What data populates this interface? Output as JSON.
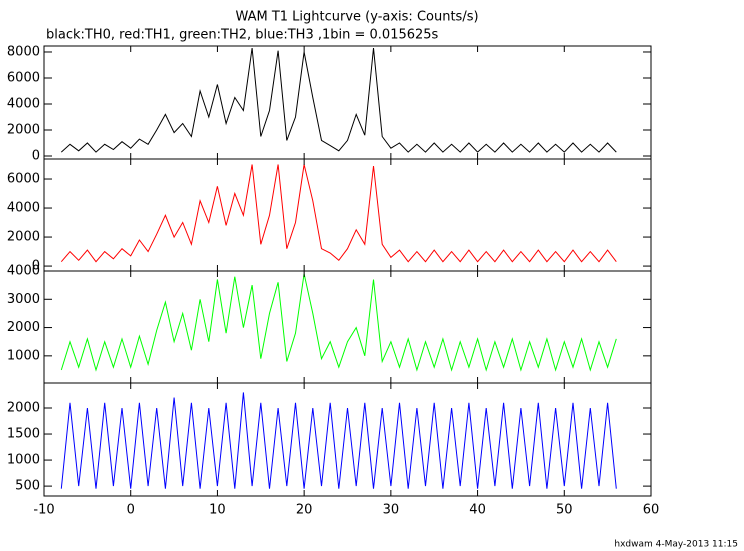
{
  "chart_data": [
    {
      "type": "line",
      "title": "WAM T1 Lightcurve (y-axis: Counts/s)",
      "subtitle": "black:TH0, red:TH1, green:TH2, blue:TH3 ,1bin = 0.015625s",
      "color": "#000000",
      "x": [
        -8,
        -7,
        -6,
        -5,
        -4,
        -3,
        -2,
        -1,
        0,
        1,
        2,
        3,
        4,
        5,
        6,
        7,
        8,
        9,
        10,
        11,
        12,
        13,
        14,
        15,
        16,
        17,
        18,
        19,
        20,
        21,
        22,
        23,
        24,
        25,
        26,
        27,
        28,
        29,
        30,
        31,
        32,
        33,
        34,
        35,
        36,
        37,
        38,
        39,
        40,
        41,
        42,
        43,
        44,
        45,
        46,
        47,
        48,
        49,
        50,
        51,
        52,
        53,
        54,
        55,
        56
      ],
      "values": [
        300,
        900,
        400,
        1000,
        300,
        900,
        500,
        1100,
        600,
        1300,
        900,
        2000,
        3200,
        1800,
        2500,
        1500,
        5000,
        3000,
        5500,
        2500,
        4500,
        3500,
        8300,
        1500,
        3500,
        8100,
        1200,
        3000,
        8000,
        4500,
        1200,
        800,
        400,
        1200,
        3200,
        1600,
        8300,
        1500,
        600,
        1000,
        300,
        900,
        300,
        1000,
        300,
        900,
        300,
        1000,
        300,
        900,
        300,
        1000,
        300,
        900,
        300,
        1000,
        300,
        900,
        300,
        1000,
        300,
        900,
        300,
        1000,
        300
      ],
      "ylim": [
        -230,
        8460
      ],
      "yticks": [
        0,
        2000,
        4000,
        6000,
        8000
      ]
    },
    {
      "type": "line",
      "color": "#ff0000",
      "x": [
        -8,
        -7,
        -6,
        -5,
        -4,
        -3,
        -2,
        -1,
        0,
        1,
        2,
        3,
        4,
        5,
        6,
        7,
        8,
        9,
        10,
        11,
        12,
        13,
        14,
        15,
        16,
        17,
        18,
        19,
        20,
        21,
        22,
        23,
        24,
        25,
        26,
        27,
        28,
        29,
        30,
        31,
        32,
        33,
        34,
        35,
        36,
        37,
        38,
        39,
        40,
        41,
        42,
        43,
        44,
        45,
        46,
        47,
        48,
        49,
        50,
        51,
        52,
        53,
        54,
        55,
        56
      ],
      "values": [
        300,
        1000,
        400,
        1100,
        300,
        1000,
        500,
        1200,
        700,
        1800,
        1000,
        2200,
        3500,
        2000,
        3000,
        1500,
        4500,
        3000,
        5500,
        2800,
        5000,
        3500,
        7000,
        1500,
        3500,
        7000,
        1200,
        3000,
        7000,
        4500,
        1200,
        900,
        400,
        1200,
        2500,
        1500,
        6900,
        1500,
        600,
        1100,
        300,
        1000,
        300,
        1100,
        300,
        1000,
        300,
        1100,
        300,
        1000,
        300,
        1100,
        300,
        1000,
        300,
        1100,
        300,
        1000,
        300,
        1100,
        300,
        1000,
        300,
        1100,
        300
      ],
      "ylim": [
        -340,
        7380
      ],
      "yticks": [
        0,
        2000,
        4000,
        6000
      ]
    },
    {
      "type": "line",
      "color": "#00ff00",
      "x": [
        -8,
        -7,
        -6,
        -5,
        -4,
        -3,
        -2,
        -1,
        0,
        1,
        2,
        3,
        4,
        5,
        6,
        7,
        8,
        9,
        10,
        11,
        12,
        13,
        14,
        15,
        16,
        17,
        18,
        19,
        20,
        21,
        22,
        23,
        24,
        25,
        26,
        27,
        28,
        29,
        30,
        31,
        32,
        33,
        34,
        35,
        36,
        37,
        38,
        39,
        40,
        41,
        42,
        43,
        44,
        45,
        46,
        47,
        48,
        49,
        50,
        51,
        52,
        53,
        54,
        55,
        56
      ],
      "values": [
        500,
        1500,
        600,
        1600,
        500,
        1500,
        600,
        1600,
        600,
        1700,
        700,
        1900,
        2900,
        1500,
        2500,
        1200,
        3000,
        1500,
        3700,
        1800,
        3800,
        2000,
        3500,
        900,
        2500,
        3600,
        800,
        1800,
        3900,
        2500,
        900,
        1500,
        600,
        1500,
        2000,
        1000,
        3700,
        800,
        1500,
        600,
        1600,
        500,
        1500,
        600,
        1600,
        500,
        1500,
        600,
        1600,
        500,
        1500,
        600,
        1600,
        500,
        1500,
        600,
        1600,
        500,
        1500,
        600,
        1600,
        500,
        1500,
        600,
        1600
      ],
      "ylim": [
        40,
        4000
      ],
      "yticks": [
        1000,
        2000,
        3000,
        4000
      ]
    },
    {
      "type": "line",
      "color": "#0000ff",
      "x": [
        -8,
        -7,
        -6,
        -5,
        -4,
        -3,
        -2,
        -1,
        0,
        1,
        2,
        3,
        4,
        5,
        6,
        7,
        8,
        9,
        10,
        11,
        12,
        13,
        14,
        15,
        16,
        17,
        18,
        19,
        20,
        21,
        22,
        23,
        24,
        25,
        26,
        27,
        28,
        29,
        30,
        31,
        32,
        33,
        34,
        35,
        36,
        37,
        38,
        39,
        40,
        41,
        42,
        43,
        44,
        45,
        46,
        47,
        48,
        49,
        50,
        51,
        52,
        53,
        54,
        55,
        56
      ],
      "values": [
        450,
        2100,
        500,
        2000,
        450,
        2100,
        500,
        2000,
        450,
        2100,
        500,
        2000,
        450,
        2200,
        500,
        2100,
        450,
        2000,
        500,
        2100,
        450,
        2300,
        500,
        2100,
        450,
        2000,
        500,
        2100,
        450,
        2000,
        500,
        2100,
        450,
        2000,
        500,
        2100,
        450,
        2000,
        500,
        2100,
        450,
        2000,
        500,
        2100,
        450,
        2000,
        500,
        2100,
        450,
        2000,
        500,
        2100,
        450,
        2000,
        500,
        2100,
        450,
        2000,
        500,
        2100,
        450,
        2000,
        500,
        2100,
        450
      ],
      "ylim": [
        310,
        2480
      ],
      "yticks": [
        500,
        1000,
        1500,
        2000
      ],
      "xlim": [
        -10,
        60
      ],
      "xticks": [
        -10,
        0,
        10,
        20,
        30,
        40,
        50,
        60
      ]
    }
  ],
  "footer": "hxdwam  4-May-2013 11:15"
}
